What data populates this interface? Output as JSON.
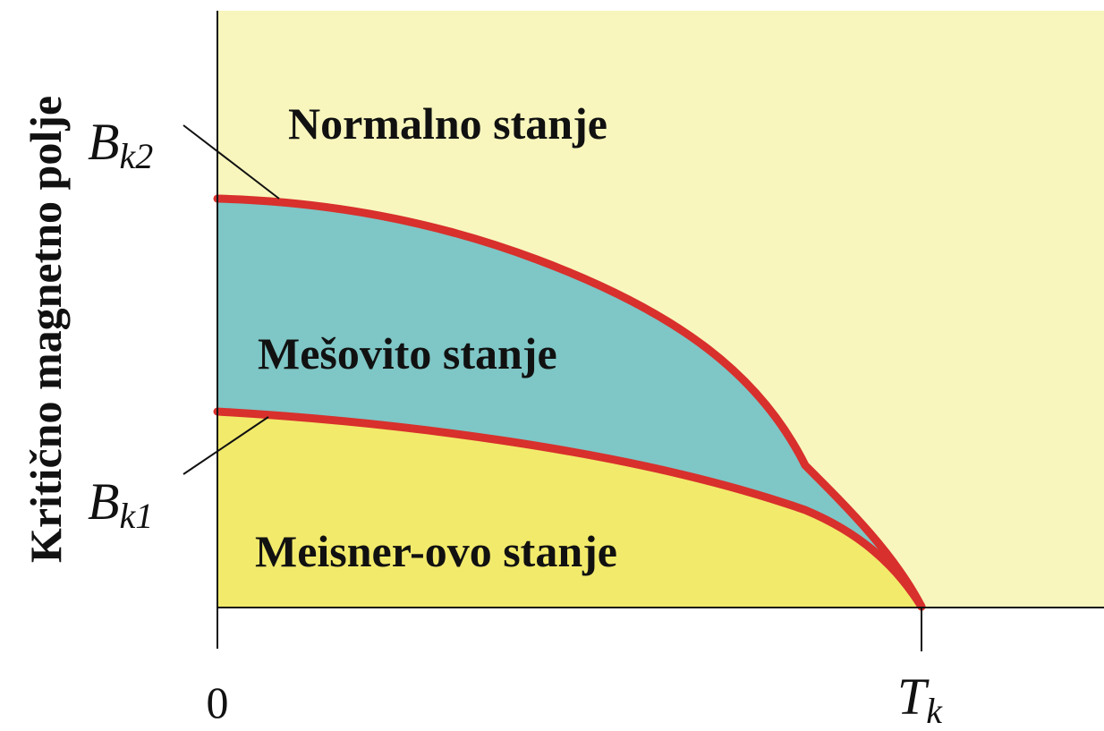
{
  "y_axis_title": "Kritično magnetno polje",
  "regions": {
    "normal": "Normalno stanje",
    "mixed": "Mešovito stanje",
    "meissner": "Meisner-ovo stanje"
  },
  "x_ticks": {
    "origin": "0",
    "critical_symbol": "T",
    "critical_subscript": "k"
  },
  "curve_labels": {
    "upper_symbol": "B",
    "upper_subscript": "k2",
    "lower_symbol": "B",
    "lower_subscript": "k1"
  },
  "colors": {
    "normal_region": "#f8f6bd",
    "mixed_region": "#7fc6c6",
    "meissner_region": "#f2ea6b",
    "critical_curves": "#d8302c",
    "axes": "#111111"
  }
}
